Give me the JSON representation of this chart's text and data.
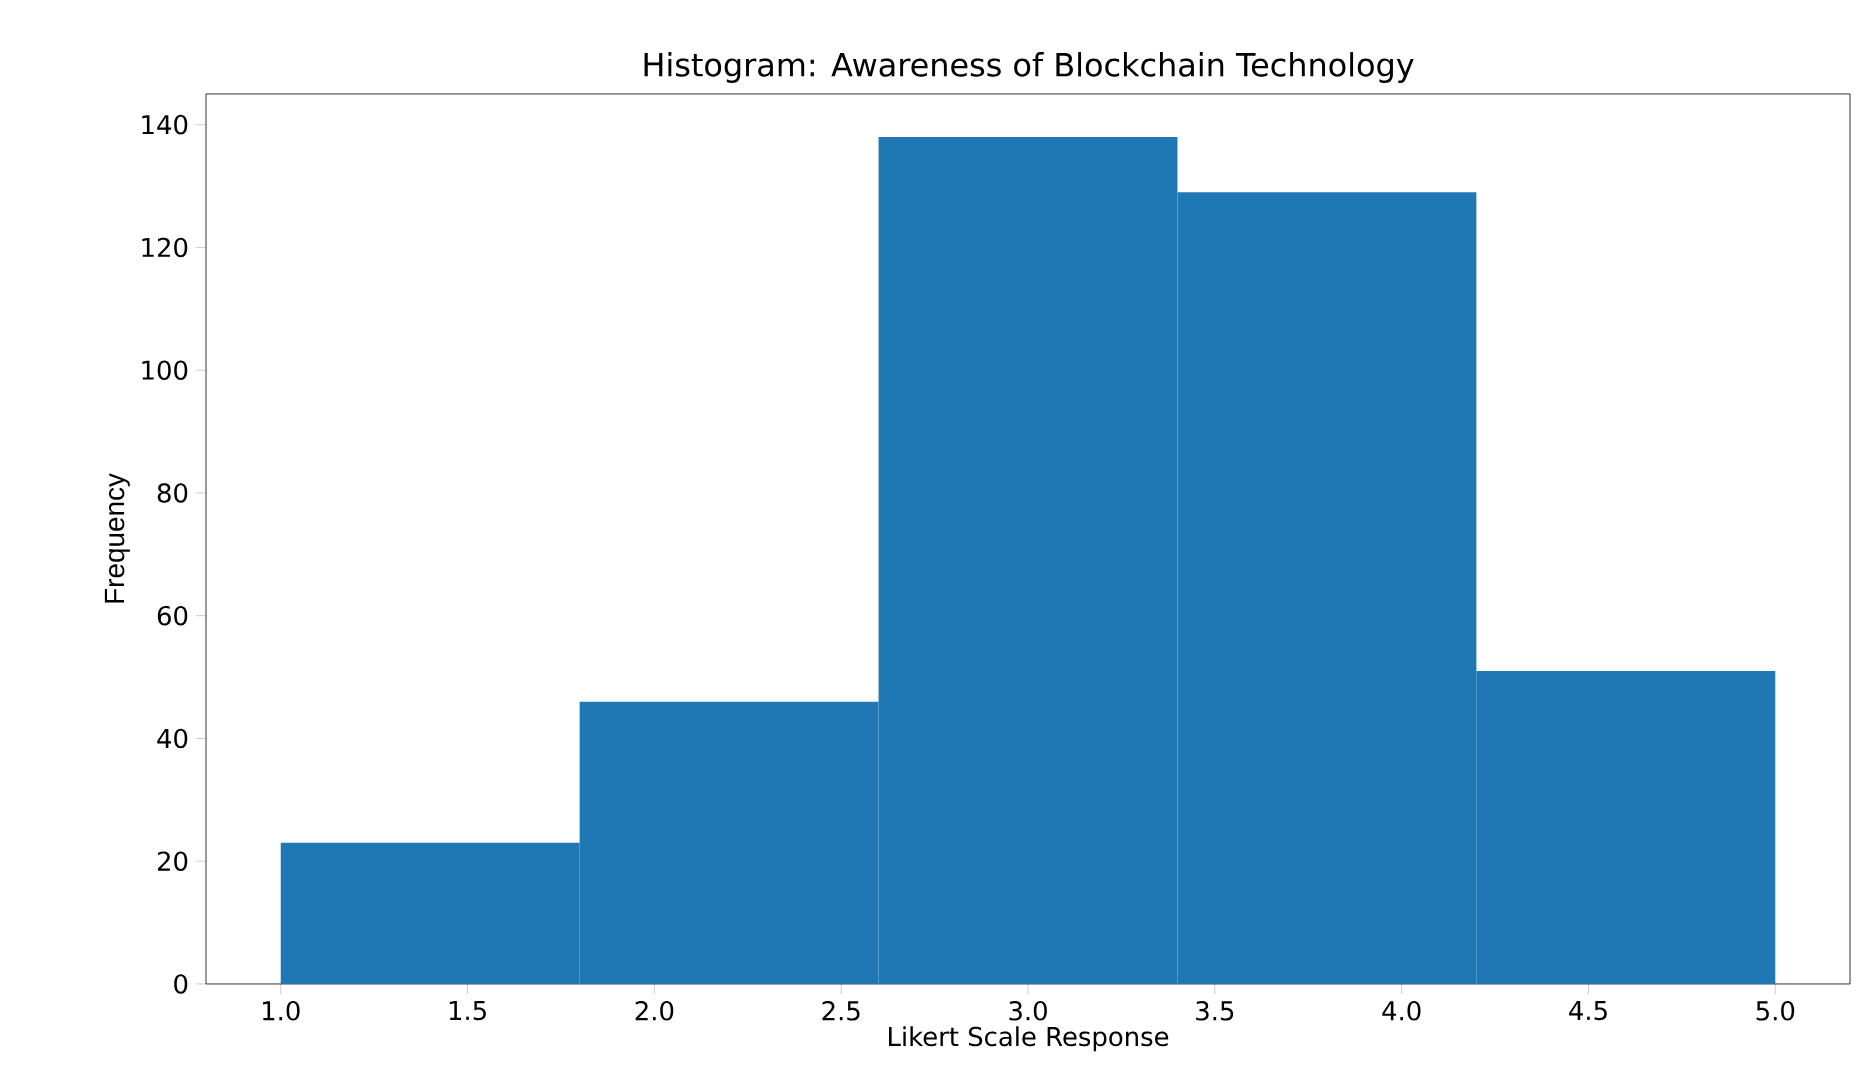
{
  "chart_data": {
    "type": "histogram",
    "title": "Histogram: Awareness of Blockchain Technology",
    "xlabel": "Likert Scale Response",
    "ylabel": "Frequency",
    "bins": [
      1.0,
      1.8,
      2.6,
      3.4,
      4.2,
      5.0
    ],
    "values": [
      23,
      46,
      138,
      129,
      51
    ],
    "color": "#1f77b4",
    "xlim": [
      0.8,
      5.2
    ],
    "ylim": [
      0,
      145
    ],
    "xticks": [
      {
        "value": 1.0,
        "label": "1.0"
      },
      {
        "value": 1.5,
        "label": "1.5"
      },
      {
        "value": 2.0,
        "label": "2.0"
      },
      {
        "value": 2.5,
        "label": "2.5"
      },
      {
        "value": 3.0,
        "label": "3.0"
      },
      {
        "value": 3.5,
        "label": "3.5"
      },
      {
        "value": 4.0,
        "label": "4.0"
      },
      {
        "value": 4.5,
        "label": "4.5"
      },
      {
        "value": 5.0,
        "label": "5.0"
      }
    ],
    "yticks": [
      0,
      20,
      40,
      60,
      80,
      100,
      120,
      140
    ]
  }
}
